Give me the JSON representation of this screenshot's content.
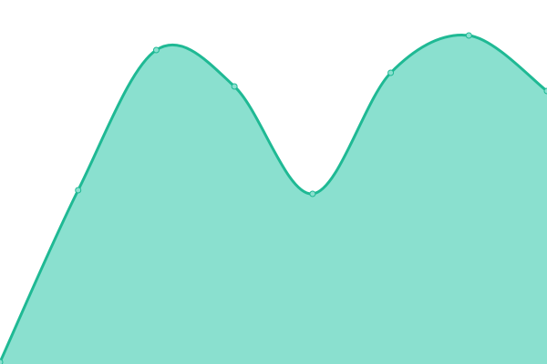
{
  "chart_data": {
    "type": "area",
    "x": [
      0,
      1,
      2,
      3,
      4,
      5,
      6,
      7
    ],
    "values": [
      2,
      191,
      345,
      305,
      187,
      320,
      361,
      300
    ],
    "ylim": [
      0,
      400
    ],
    "xlim": [
      0,
      7
    ],
    "grid": false,
    "axes_visible": false,
    "smooth": true,
    "colors": {
      "line": "#1fb994",
      "fill": "#8ae0cf",
      "marker_fill": "#8ae0cf",
      "marker_stroke": "#1fb994"
    }
  }
}
